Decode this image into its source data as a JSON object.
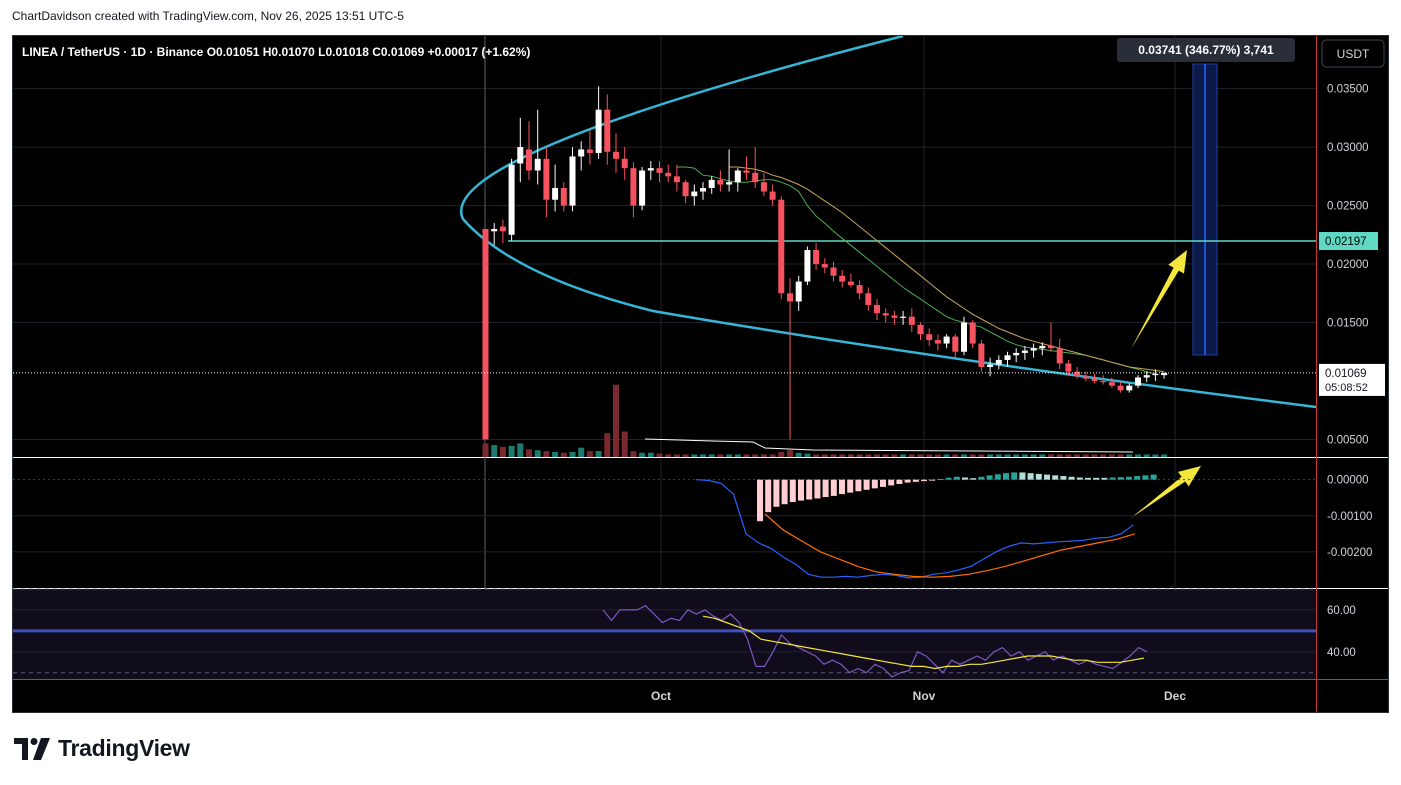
{
  "credit": "ChartDavidson created with TradingView.com, Nov 26, 2025 13:51 UTC-5",
  "brand": "TradingView",
  "header": {
    "pair": "LINEA / TetherUS · 1D · Binance",
    "open": "O0.01051",
    "high": "H0.01070",
    "low": "L0.01018",
    "close": "C0.01069",
    "change": "+0.00017 (+1.62%)"
  },
  "currency_button": "USDT",
  "measure_label": "0.03741 (346.77%) 3,741",
  "price_badges": {
    "level": "0.02197",
    "last": "0.01069",
    "countdown": "05:08:52"
  },
  "price_axis": [
    "0.03500",
    "0.03000",
    "0.02500",
    "0.02000",
    "0.01500",
    "0.00500"
  ],
  "macd_axis": [
    "0.00000",
    "-0.00100",
    "-0.00200"
  ],
  "rsi_axis": [
    "60.00",
    "40.00"
  ],
  "time_axis": [
    "Oct",
    "Nov",
    "Dec"
  ],
  "colors": {
    "up": "#ffffff",
    "down": "#f7525f",
    "parabola": "#36b6d6",
    "level": "#5fd9c4",
    "ema_fast": "#4caf50",
    "ema_slow": "#c9a35a",
    "arrow": "#f5e63c",
    "macd": "#2962ff",
    "signal": "#ff6d00",
    "rsi": "#7e57c2",
    "rsi_ma": "#f5e63c"
  },
  "chart_data": {
    "type": "candlestick",
    "symbol": "LINEA / TetherUS",
    "interval": "1D",
    "exchange": "Binance",
    "ylim": [
      0.0035,
      0.0395
    ],
    "horizontal_level": 0.02197,
    "last_price": 0.01069,
    "ohlc": [
      [
        0.023,
        0.023,
        0.005,
        0.005
      ],
      [
        0.0228,
        0.0235,
        0.0216,
        0.023
      ],
      [
        0.0232,
        0.0238,
        0.0218,
        0.0228
      ],
      [
        0.0225,
        0.029,
        0.022,
        0.0285
      ],
      [
        0.0286,
        0.0325,
        0.027,
        0.03
      ],
      [
        0.0298,
        0.0322,
        0.0272,
        0.028
      ],
      [
        0.028,
        0.0332,
        0.0268,
        0.029
      ],
      [
        0.029,
        0.03,
        0.024,
        0.0255
      ],
      [
        0.0255,
        0.0285,
        0.0245,
        0.0265
      ],
      [
        0.0265,
        0.027,
        0.0245,
        0.025
      ],
      [
        0.025,
        0.03,
        0.0245,
        0.0292
      ],
      [
        0.0292,
        0.0305,
        0.028,
        0.0298
      ],
      [
        0.0298,
        0.0315,
        0.0285,
        0.0295
      ],
      [
        0.0295,
        0.0352,
        0.029,
        0.0332
      ],
      [
        0.0332,
        0.0345,
        0.0285,
        0.0296
      ],
      [
        0.0296,
        0.0312,
        0.0278,
        0.029
      ],
      [
        0.029,
        0.03,
        0.0272,
        0.0282
      ],
      [
        0.0282,
        0.0287,
        0.024,
        0.025
      ],
      [
        0.025,
        0.0283,
        0.0246,
        0.028
      ],
      [
        0.028,
        0.0288,
        0.0272,
        0.0282
      ],
      [
        0.0282,
        0.0288,
        0.027,
        0.0278
      ],
      [
        0.0278,
        0.0285,
        0.027,
        0.0275
      ],
      [
        0.0275,
        0.0285,
        0.0262,
        0.027
      ],
      [
        0.027,
        0.0272,
        0.0252,
        0.0258
      ],
      [
        0.0258,
        0.0268,
        0.025,
        0.0262
      ],
      [
        0.0262,
        0.027,
        0.0255,
        0.0265
      ],
      [
        0.0265,
        0.0275,
        0.026,
        0.0272
      ],
      [
        0.0272,
        0.028,
        0.0262,
        0.0268
      ],
      [
        0.0268,
        0.0298,
        0.0262,
        0.027
      ],
      [
        0.027,
        0.0282,
        0.0262,
        0.028
      ],
      [
        0.028,
        0.0292,
        0.0272,
        0.0278
      ],
      [
        0.0278,
        0.03,
        0.0265,
        0.027
      ],
      [
        0.027,
        0.0278,
        0.0258,
        0.0262
      ],
      [
        0.0262,
        0.0268,
        0.025,
        0.0255
      ],
      [
        0.0255,
        0.0258,
        0.017,
        0.0175
      ],
      [
        0.0175,
        0.0188,
        0.005,
        0.0168
      ],
      [
        0.0168,
        0.019,
        0.016,
        0.0185
      ],
      [
        0.0185,
        0.0215,
        0.0182,
        0.0212
      ],
      [
        0.0212,
        0.0218,
        0.0195,
        0.02
      ],
      [
        0.02,
        0.0205,
        0.0192,
        0.0197
      ],
      [
        0.0197,
        0.0202,
        0.0185,
        0.019
      ],
      [
        0.019,
        0.0195,
        0.018,
        0.0185
      ],
      [
        0.0185,
        0.0192,
        0.018,
        0.0182
      ],
      [
        0.0182,
        0.0186,
        0.017,
        0.0175
      ],
      [
        0.0175,
        0.018,
        0.016,
        0.0165
      ],
      [
        0.0165,
        0.017,
        0.0152,
        0.0158
      ],
      [
        0.0158,
        0.0162,
        0.015,
        0.0156
      ],
      [
        0.0156,
        0.016,
        0.0148,
        0.0154
      ],
      [
        0.0154,
        0.016,
        0.0148,
        0.0155
      ],
      [
        0.0155,
        0.0162,
        0.0142,
        0.0148
      ],
      [
        0.0148,
        0.015,
        0.0135,
        0.014
      ],
      [
        0.014,
        0.0145,
        0.013,
        0.0135
      ],
      [
        0.0135,
        0.014,
        0.0126,
        0.0132
      ],
      [
        0.0132,
        0.014,
        0.0128,
        0.0138
      ],
      [
        0.0138,
        0.014,
        0.012,
        0.0125
      ],
      [
        0.0125,
        0.0155,
        0.0122,
        0.015
      ],
      [
        0.015,
        0.0152,
        0.0128,
        0.0132
      ],
      [
        0.0132,
        0.0135,
        0.0108,
        0.0112
      ],
      [
        0.0112,
        0.012,
        0.0104,
        0.0114
      ],
      [
        0.0114,
        0.0122,
        0.011,
        0.0118
      ],
      [
        0.0118,
        0.0125,
        0.0112,
        0.0122
      ],
      [
        0.0122,
        0.0128,
        0.0116,
        0.0124
      ],
      [
        0.0124,
        0.013,
        0.0118,
        0.0126
      ],
      [
        0.0126,
        0.0132,
        0.012,
        0.0128
      ],
      [
        0.0128,
        0.0133,
        0.0122,
        0.013
      ],
      [
        0.013,
        0.015,
        0.0125,
        0.0128
      ],
      [
        0.0128,
        0.0136,
        0.011,
        0.0115
      ],
      [
        0.0115,
        0.0118,
        0.0104,
        0.0108
      ],
      [
        0.0108,
        0.0112,
        0.0102,
        0.0104
      ],
      [
        0.0104,
        0.0108,
        0.01,
        0.0102
      ],
      [
        0.0102,
        0.0106,
        0.0098,
        0.01
      ],
      [
        0.01,
        0.0105,
        0.0097,
        0.0099
      ],
      [
        0.0099,
        0.0103,
        0.0094,
        0.0096
      ],
      [
        0.0096,
        0.01,
        0.009,
        0.0092
      ],
      [
        0.0092,
        0.0098,
        0.009,
        0.0096
      ],
      [
        0.0096,
        0.0105,
        0.0094,
        0.0103
      ],
      [
        0.0103,
        0.0108,
        0.0099,
        0.0105
      ],
      [
        0.0105,
        0.011,
        0.01,
        0.0106
      ],
      [
        0.0105,
        0.0107,
        0.0102,
        0.0107
      ]
    ],
    "volume": [
      16,
      14,
      12,
      13,
      16,
      9,
      8,
      7,
      6,
      5,
      6,
      11,
      7,
      7,
      28,
      85,
      30,
      7,
      5,
      5,
      4,
      3,
      3,
      3,
      3,
      3,
      3,
      3,
      3,
      3,
      3,
      3,
      3,
      3,
      6,
      8,
      5,
      4,
      3,
      3,
      3,
      3,
      3,
      3,
      3,
      3,
      3,
      3,
      3,
      3,
      3,
      3,
      3,
      3,
      3,
      3,
      3,
      3,
      3,
      3,
      3,
      3,
      3,
      3,
      3,
      3,
      3,
      3,
      3,
      3,
      3,
      3,
      3,
      3,
      3,
      3,
      3,
      3,
      3
    ],
    "ema_fast": [
      0.0283,
      0.0283,
      0.0282,
      0.0276,
      0.0275,
      0.0273,
      0.0271,
      0.027,
      0.027,
      0.0271,
      0.0272,
      0.0272,
      0.027,
      0.0267,
      0.0262,
      0.025,
      0.0241,
      0.0235,
      0.0228,
      0.0222,
      0.0216,
      0.021,
      0.0204,
      0.0198,
      0.0192,
      0.0186,
      0.018,
      0.0175,
      0.017,
      0.0165,
      0.016,
      0.0155,
      0.0152,
      0.015,
      0.0148,
      0.0146,
      0.0142,
      0.0138,
      0.0134,
      0.0131,
      0.0129,
      0.0128,
      0.0127,
      0.0126,
      0.0125,
      0.0124,
      0.0123,
      0.0122,
      0.012,
      0.0118,
      0.0116,
      0.0114,
      0.0112,
      0.011,
      0.0108,
      0.0106
    ],
    "ema_slow": [
      0.0283,
      0.0283,
      0.0282,
      0.0281,
      0.0279,
      0.0276,
      0.0274,
      0.0271,
      0.0268,
      0.0264,
      0.0259,
      0.0254,
      0.0249,
      0.0244,
      0.0238,
      0.0232,
      0.0226,
      0.022,
      0.0214,
      0.0208,
      0.0202,
      0.0196,
      0.019,
      0.0184,
      0.0178,
      0.0172,
      0.0167,
      0.0162,
      0.0157,
      0.0153,
      0.0149,
      0.0145,
      0.0142,
      0.0139,
      0.0136,
      0.0134,
      0.0132,
      0.013,
      0.0128,
      0.0126,
      0.0124,
      0.0122,
      0.012,
      0.0118,
      0.0116,
      0.0114,
      0.0112,
      0.0111,
      0.011,
      0.0109,
      0.0108
    ],
    "macd": {
      "ylim": [
        -0.003,
        0.0006
      ],
      "macd": [
        0.0,
        -2e-05,
        -0.0001,
        -0.0004,
        -0.0015,
        -0.00175,
        -0.0019,
        -0.00215,
        -0.00235,
        -0.00262,
        -0.0027,
        -0.0027,
        -0.00268,
        -0.0027,
        -0.00265,
        -0.00262,
        -0.00265,
        -0.00272,
        -0.0027,
        -0.00262,
        -0.00258,
        -0.0025,
        -0.0024,
        -0.0022,
        -0.002,
        -0.00185,
        -0.00175,
        -0.00178,
        -0.00175,
        -0.00172,
        -0.0017,
        -0.00168,
        -0.00162,
        -0.0016,
        -0.0015,
        -0.00125
      ],
      "signal": [
        -0.00095,
        -0.0014,
        -0.0017,
        -0.002,
        -0.0022,
        -0.0024,
        -0.00255,
        -0.00262,
        -0.00268,
        -0.0027,
        -0.00268,
        -0.00262,
        -0.00252,
        -0.0024,
        -0.00225,
        -0.0021,
        -0.00195,
        -0.00185,
        -0.00175,
        -0.00165,
        -0.0015
      ],
      "histogram": [
        -0.00115,
        -0.0009,
        -0.00075,
        -0.00068,
        -0.00062,
        -0.00058,
        -0.00055,
        -0.00052,
        -0.00048,
        -0.00045,
        -0.0004,
        -0.00036,
        -0.00032,
        -0.00028,
        -0.00024,
        -0.0002,
        -0.00016,
        -0.00012,
        -8e-05,
        -6e-05,
        -4e-05,
        -2e-05,
        2e-05,
        5e-05,
        8e-05,
        6e-05,
        4e-05,
        8e-05,
        0.00012,
        0.00015,
        0.00018,
        0.0002,
        0.0002,
        0.00018,
        0.00016,
        0.00014,
        0.00012,
        0.0001,
        8e-05,
        6e-05,
        5e-05,
        5e-05,
        5e-05,
        6e-05,
        7e-05,
        8e-05,
        0.0001,
        0.00012,
        0.00014
      ]
    },
    "rsi": {
      "ylim": [
        27,
        70
      ],
      "bands": [
        30,
        70
      ],
      "midline": 50,
      "rsi": [
        60,
        55,
        60,
        60,
        60,
        62,
        58,
        54,
        56,
        55,
        60,
        58,
        60,
        57,
        55,
        58,
        54,
        46,
        33,
        33,
        40,
        48,
        44,
        42,
        40,
        38,
        34,
        36,
        34,
        30,
        32,
        30,
        34,
        32,
        28,
        30,
        31,
        40,
        38,
        34,
        30,
        36,
        34,
        36,
        38,
        36,
        40,
        42,
        38,
        40,
        36,
        38,
        40,
        36,
        38,
        36,
        34,
        36,
        34,
        33,
        32,
        35,
        38,
        42,
        40
      ],
      "ma": [
        57,
        56,
        54,
        52,
        50,
        46,
        45,
        44,
        43,
        42,
        41,
        40,
        39,
        38,
        37,
        36,
        35,
        34,
        33,
        33,
        32,
        33,
        33,
        34,
        34,
        35,
        36,
        37,
        38,
        38,
        38,
        37,
        36,
        36,
        35,
        35,
        35,
        36,
        37
      ]
    }
  }
}
